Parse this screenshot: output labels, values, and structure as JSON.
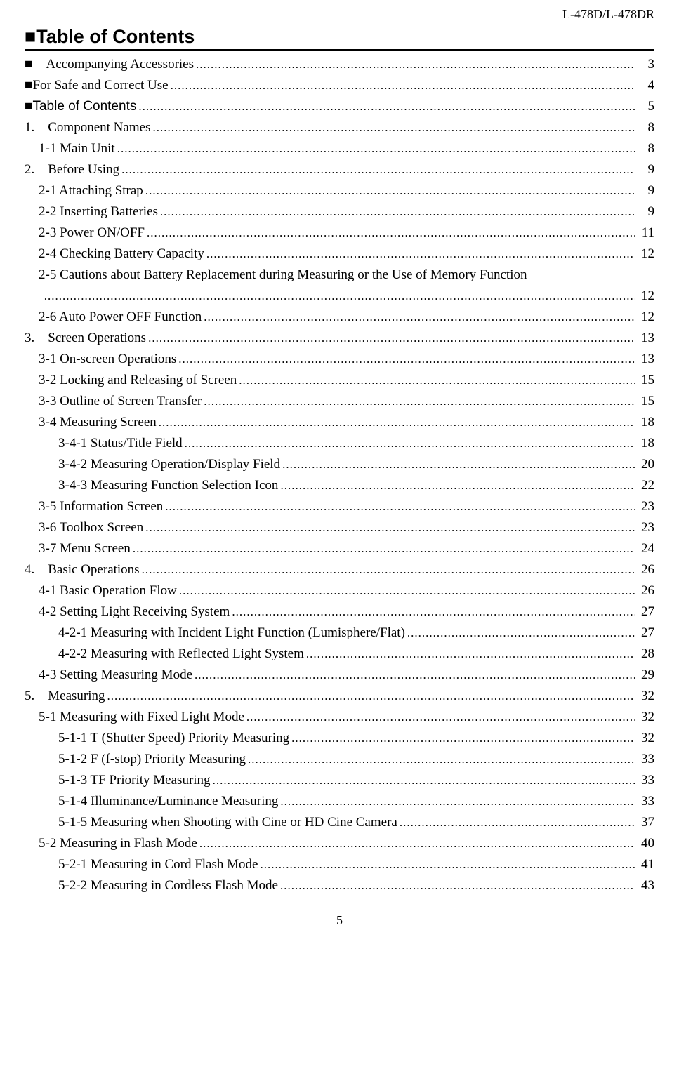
{
  "header_right": "L-478D/L-478DR",
  "title": "■Table of Contents",
  "page_number": "5",
  "entries": [
    {
      "label": "■　Accompanying Accessories",
      "page": "3",
      "indent": 0,
      "sans": false
    },
    {
      "label": "■For Safe and Correct Use",
      "page": "4",
      "indent": 0,
      "sans": false
    },
    {
      "label": "■Table of Contents",
      "page": "5",
      "indent": 0,
      "sans": true
    },
    {
      "label": "1.　Component Names",
      "page": "8",
      "indent": 0,
      "sans": false
    },
    {
      "label": "1-1 Main Unit",
      "page": "8",
      "indent": 1,
      "sans": false
    },
    {
      "label": "2.　Before Using",
      "page": "9",
      "indent": 0,
      "sans": false
    },
    {
      "label": "2-1 Attaching Strap",
      "page": "9",
      "indent": 1,
      "sans": false
    },
    {
      "label": "2-2 Inserting Batteries",
      "page": "9",
      "indent": 1,
      "sans": false
    },
    {
      "label": "2-3 Power ON/OFF",
      "page": "11",
      "indent": 1,
      "sans": false
    },
    {
      "label": "2-4 Checking Battery Capacity",
      "page": "12",
      "indent": 1,
      "sans": false
    },
    {
      "label": "2-5 Cautions about Battery Replacement during Measuring or the Use of Memory Function",
      "page": "",
      "indent": 1,
      "sans": false,
      "no_leader": true
    },
    {
      "label": "",
      "page": "12",
      "indent": 1,
      "sans": false,
      "blank": true
    },
    {
      "label": "2-6 Auto Power OFF Function",
      "page": "12",
      "indent": 1,
      "sans": false
    },
    {
      "label": "3.　Screen Operations",
      "page": "13",
      "indent": 0,
      "sans": false
    },
    {
      "label": "3-1 On-screen Operations",
      "page": "13",
      "indent": 1,
      "sans": false
    },
    {
      "label": "3-2 Locking and Releasing of Screen",
      "page": "15",
      "indent": 1,
      "sans": false
    },
    {
      "label": "3-3 Outline of Screen Transfer",
      "page": "15",
      "indent": 1,
      "sans": false
    },
    {
      "label": "3-4 Measuring Screen",
      "page": "18",
      "indent": 1,
      "sans": false
    },
    {
      "label": "3-4-1 Status/Title Field",
      "page": "18",
      "indent": 2,
      "sans": false
    },
    {
      "label": "3-4-2 Measuring Operation/Display Field",
      "page": "20",
      "indent": 2,
      "sans": false
    },
    {
      "label": "3-4-3 Measuring Function Selection Icon",
      "page": "22",
      "indent": 2,
      "sans": false
    },
    {
      "label": "3-5 Information Screen",
      "page": "23",
      "indent": 1,
      "sans": false
    },
    {
      "label": "3-6 Toolbox Screen",
      "page": "23",
      "indent": 1,
      "sans": false
    },
    {
      "label": "3-7 Menu Screen",
      "page": "24",
      "indent": 1,
      "sans": false
    },
    {
      "label": "4.　Basic Operations",
      "page": "26",
      "indent": 0,
      "sans": false
    },
    {
      "label": "4-1 Basic Operation Flow",
      "page": "26",
      "indent": 1,
      "sans": false
    },
    {
      "label": "4-2 Setting Light Receiving System",
      "page": "27",
      "indent": 1,
      "sans": false
    },
    {
      "label": "4-2-1 Measuring with Incident Light Function (Lumisphere/Flat)",
      "page": "27",
      "indent": 2,
      "sans": false
    },
    {
      "label": "4-2-2 Measuring with Reflected Light System",
      "page": "28",
      "indent": 2,
      "sans": false
    },
    {
      "label": "4-3 Setting Measuring Mode",
      "page": "29",
      "indent": 1,
      "sans": false
    },
    {
      "label": "5.　Measuring",
      "page": "32",
      "indent": 0,
      "sans": false
    },
    {
      "label": "5-1 Measuring with Fixed Light Mode",
      "page": "32",
      "indent": 1,
      "sans": false
    },
    {
      "label": "5-1-1 T (Shutter Speed) Priority Measuring",
      "page": "32",
      "indent": 2,
      "sans": false
    },
    {
      "label": "5-1-2 F (f-stop) Priority Measuring",
      "page": "33",
      "indent": 2,
      "sans": false
    },
    {
      "label": "5-1-3 TF Priority Measuring",
      "page": "33",
      "indent": 2,
      "sans": false
    },
    {
      "label": "5-1-4 Illuminance/Luminance Measuring",
      "page": "33",
      "indent": 2,
      "sans": false
    },
    {
      "label": "5-1-5 Measuring when Shooting with Cine or HD Cine Camera",
      "page": "37",
      "indent": 2,
      "sans": false
    },
    {
      "label": "5-2 Measuring in Flash Mode",
      "page": "40",
      "indent": 1,
      "sans": false
    },
    {
      "label": "5-2-1 Measuring in Cord Flash Mode",
      "page": "41",
      "indent": 2,
      "sans": false
    },
    {
      "label": "5-2-2 Measuring in Cordless Flash Mode",
      "page": "43",
      "indent": 2,
      "sans": false
    }
  ]
}
